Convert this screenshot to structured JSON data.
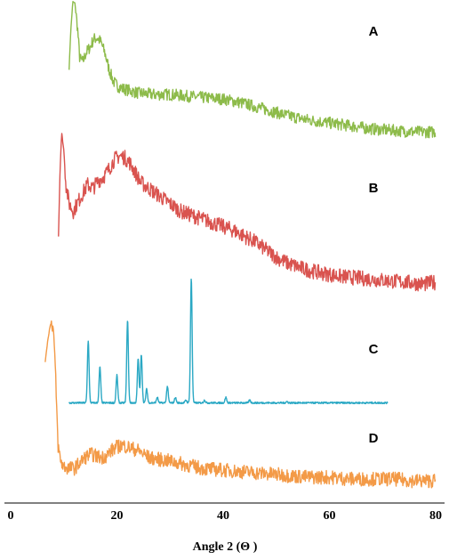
{
  "chart_data": {
    "type": "line",
    "title": "",
    "xlabel": "Angle 2 (Θ )",
    "ylabel": "",
    "xlim": [
      0,
      80
    ],
    "xticks": [
      0,
      20,
      40,
      60,
      80
    ],
    "yaxis_visible": false,
    "grid": false,
    "stacked_offset": true,
    "series": [
      {
        "name": "A",
        "color": "#8dbb4a",
        "x": [
          11,
          11.3,
          11.7,
          12.1,
          12.6,
          13,
          13.6,
          14.2,
          15,
          15.6,
          16.3,
          17,
          17.8,
          18.5,
          19.3,
          20,
          21,
          22,
          24,
          27,
          30,
          33,
          36,
          40,
          44,
          48,
          52,
          56,
          60,
          64,
          68,
          72,
          76,
          80
        ],
        "y": [
          0.55,
          0.8,
          1.0,
          0.99,
          0.82,
          0.62,
          0.6,
          0.66,
          0.7,
          0.75,
          0.76,
          0.73,
          0.65,
          0.55,
          0.47,
          0.44,
          0.42,
          0.41,
          0.39,
          0.38,
          0.38,
          0.37,
          0.36,
          0.35,
          0.32,
          0.28,
          0.24,
          0.21,
          0.19,
          0.17,
          0.15,
          0.14,
          0.13,
          0.13
        ]
      },
      {
        "name": "B",
        "color": "#d9534f",
        "x": [
          9,
          9.3,
          9.6,
          10,
          10.4,
          11,
          11.8,
          12.5,
          13.5,
          14.5,
          15.5,
          16.5,
          17.5,
          18.5,
          19.5,
          20.5,
          21.5,
          22.5,
          23.5,
          24.5,
          26,
          28,
          30,
          32,
          34,
          36,
          38,
          40,
          42,
          44,
          46,
          48,
          50,
          52,
          55,
          58,
          62,
          66,
          70,
          74,
          78,
          80
        ],
        "y": [
          0.45,
          0.8,
          0.99,
          0.9,
          0.72,
          0.62,
          0.58,
          0.62,
          0.67,
          0.72,
          0.7,
          0.74,
          0.76,
          0.8,
          0.85,
          0.87,
          0.86,
          0.83,
          0.78,
          0.73,
          0.7,
          0.66,
          0.62,
          0.58,
          0.56,
          0.54,
          0.52,
          0.5,
          0.48,
          0.45,
          0.42,
          0.38,
          0.34,
          0.31,
          0.28,
          0.26,
          0.24,
          0.23,
          0.22,
          0.21,
          0.2,
          0.21
        ]
      },
      {
        "name": "C",
        "color": "#2aa8c4",
        "baseline_x": [
          11,
          71
        ],
        "baseline": 0.1,
        "peaks": [
          {
            "x": 14.6,
            "y": 0.55
          },
          {
            "x": 16.8,
            "y": 0.36
          },
          {
            "x": 20.0,
            "y": 0.3
          },
          {
            "x": 22.0,
            "y": 0.7
          },
          {
            "x": 24.0,
            "y": 0.42
          },
          {
            "x": 24.6,
            "y": 0.45
          },
          {
            "x": 25.6,
            "y": 0.2
          },
          {
            "x": 27.6,
            "y": 0.14
          },
          {
            "x": 29.5,
            "y": 0.22
          },
          {
            "x": 31.0,
            "y": 0.14
          },
          {
            "x": 33.0,
            "y": 0.12
          },
          {
            "x": 34.0,
            "y": 1.0
          },
          {
            "x": 36.5,
            "y": 0.12
          },
          {
            "x": 40.5,
            "y": 0.14
          },
          {
            "x": 45.0,
            "y": 0.12
          },
          {
            "x": 52.0,
            "y": 0.11
          }
        ]
      },
      {
        "name": "D",
        "color": "#f39a47",
        "x": [
          6.5,
          6.9,
          7.3,
          7.7,
          8.1,
          8.5,
          8.9,
          9.4,
          10,
          11,
          12,
          13,
          14,
          15,
          16,
          17,
          18,
          19,
          20,
          21,
          22,
          23,
          24,
          25,
          26,
          28,
          30,
          33,
          36,
          40,
          44,
          48,
          52,
          56,
          60,
          64,
          68,
          72,
          76,
          80
        ],
        "y": [
          0.72,
          0.82,
          0.9,
          0.95,
          0.88,
          0.6,
          0.25,
          0.16,
          0.13,
          0.12,
          0.12,
          0.15,
          0.18,
          0.2,
          0.19,
          0.18,
          0.19,
          0.22,
          0.24,
          0.25,
          0.24,
          0.23,
          0.22,
          0.2,
          0.18,
          0.17,
          0.16,
          0.14,
          0.12,
          0.11,
          0.1,
          0.09,
          0.08,
          0.07,
          0.07,
          0.06,
          0.06,
          0.06,
          0.05,
          0.05
        ]
      }
    ]
  }
}
